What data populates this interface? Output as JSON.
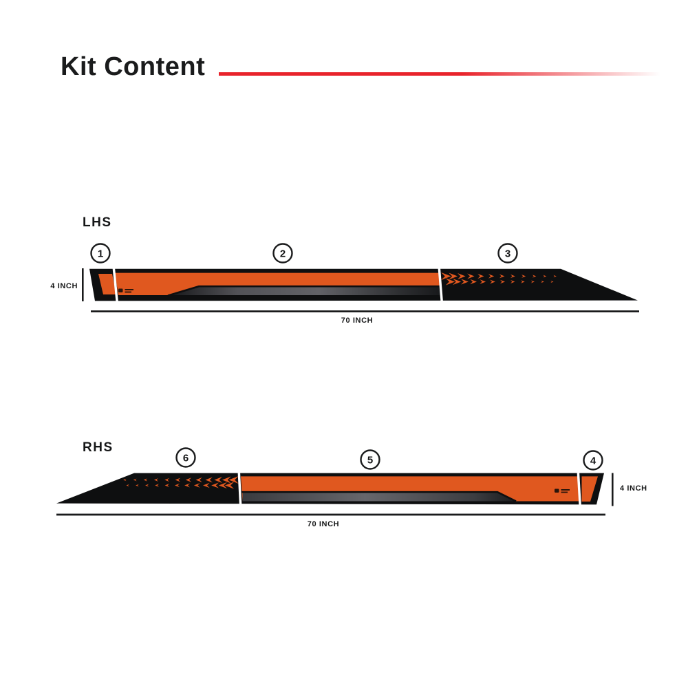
{
  "title": "Kit Content",
  "colors": {
    "accent_red": "#E8232B",
    "decal_orange": "#E0581F",
    "decal_black": "#0E0F10",
    "swoosh_gray": "#66666A"
  },
  "lhs": {
    "label": "LHS",
    "markers": [
      "1",
      "2",
      "3"
    ],
    "height_label": "4 INCH",
    "length_label": "70 INCH"
  },
  "rhs": {
    "label": "RHS",
    "markers": [
      "6",
      "5",
      "4"
    ],
    "height_label": "4 INCH",
    "length_label": "70 INCH"
  }
}
